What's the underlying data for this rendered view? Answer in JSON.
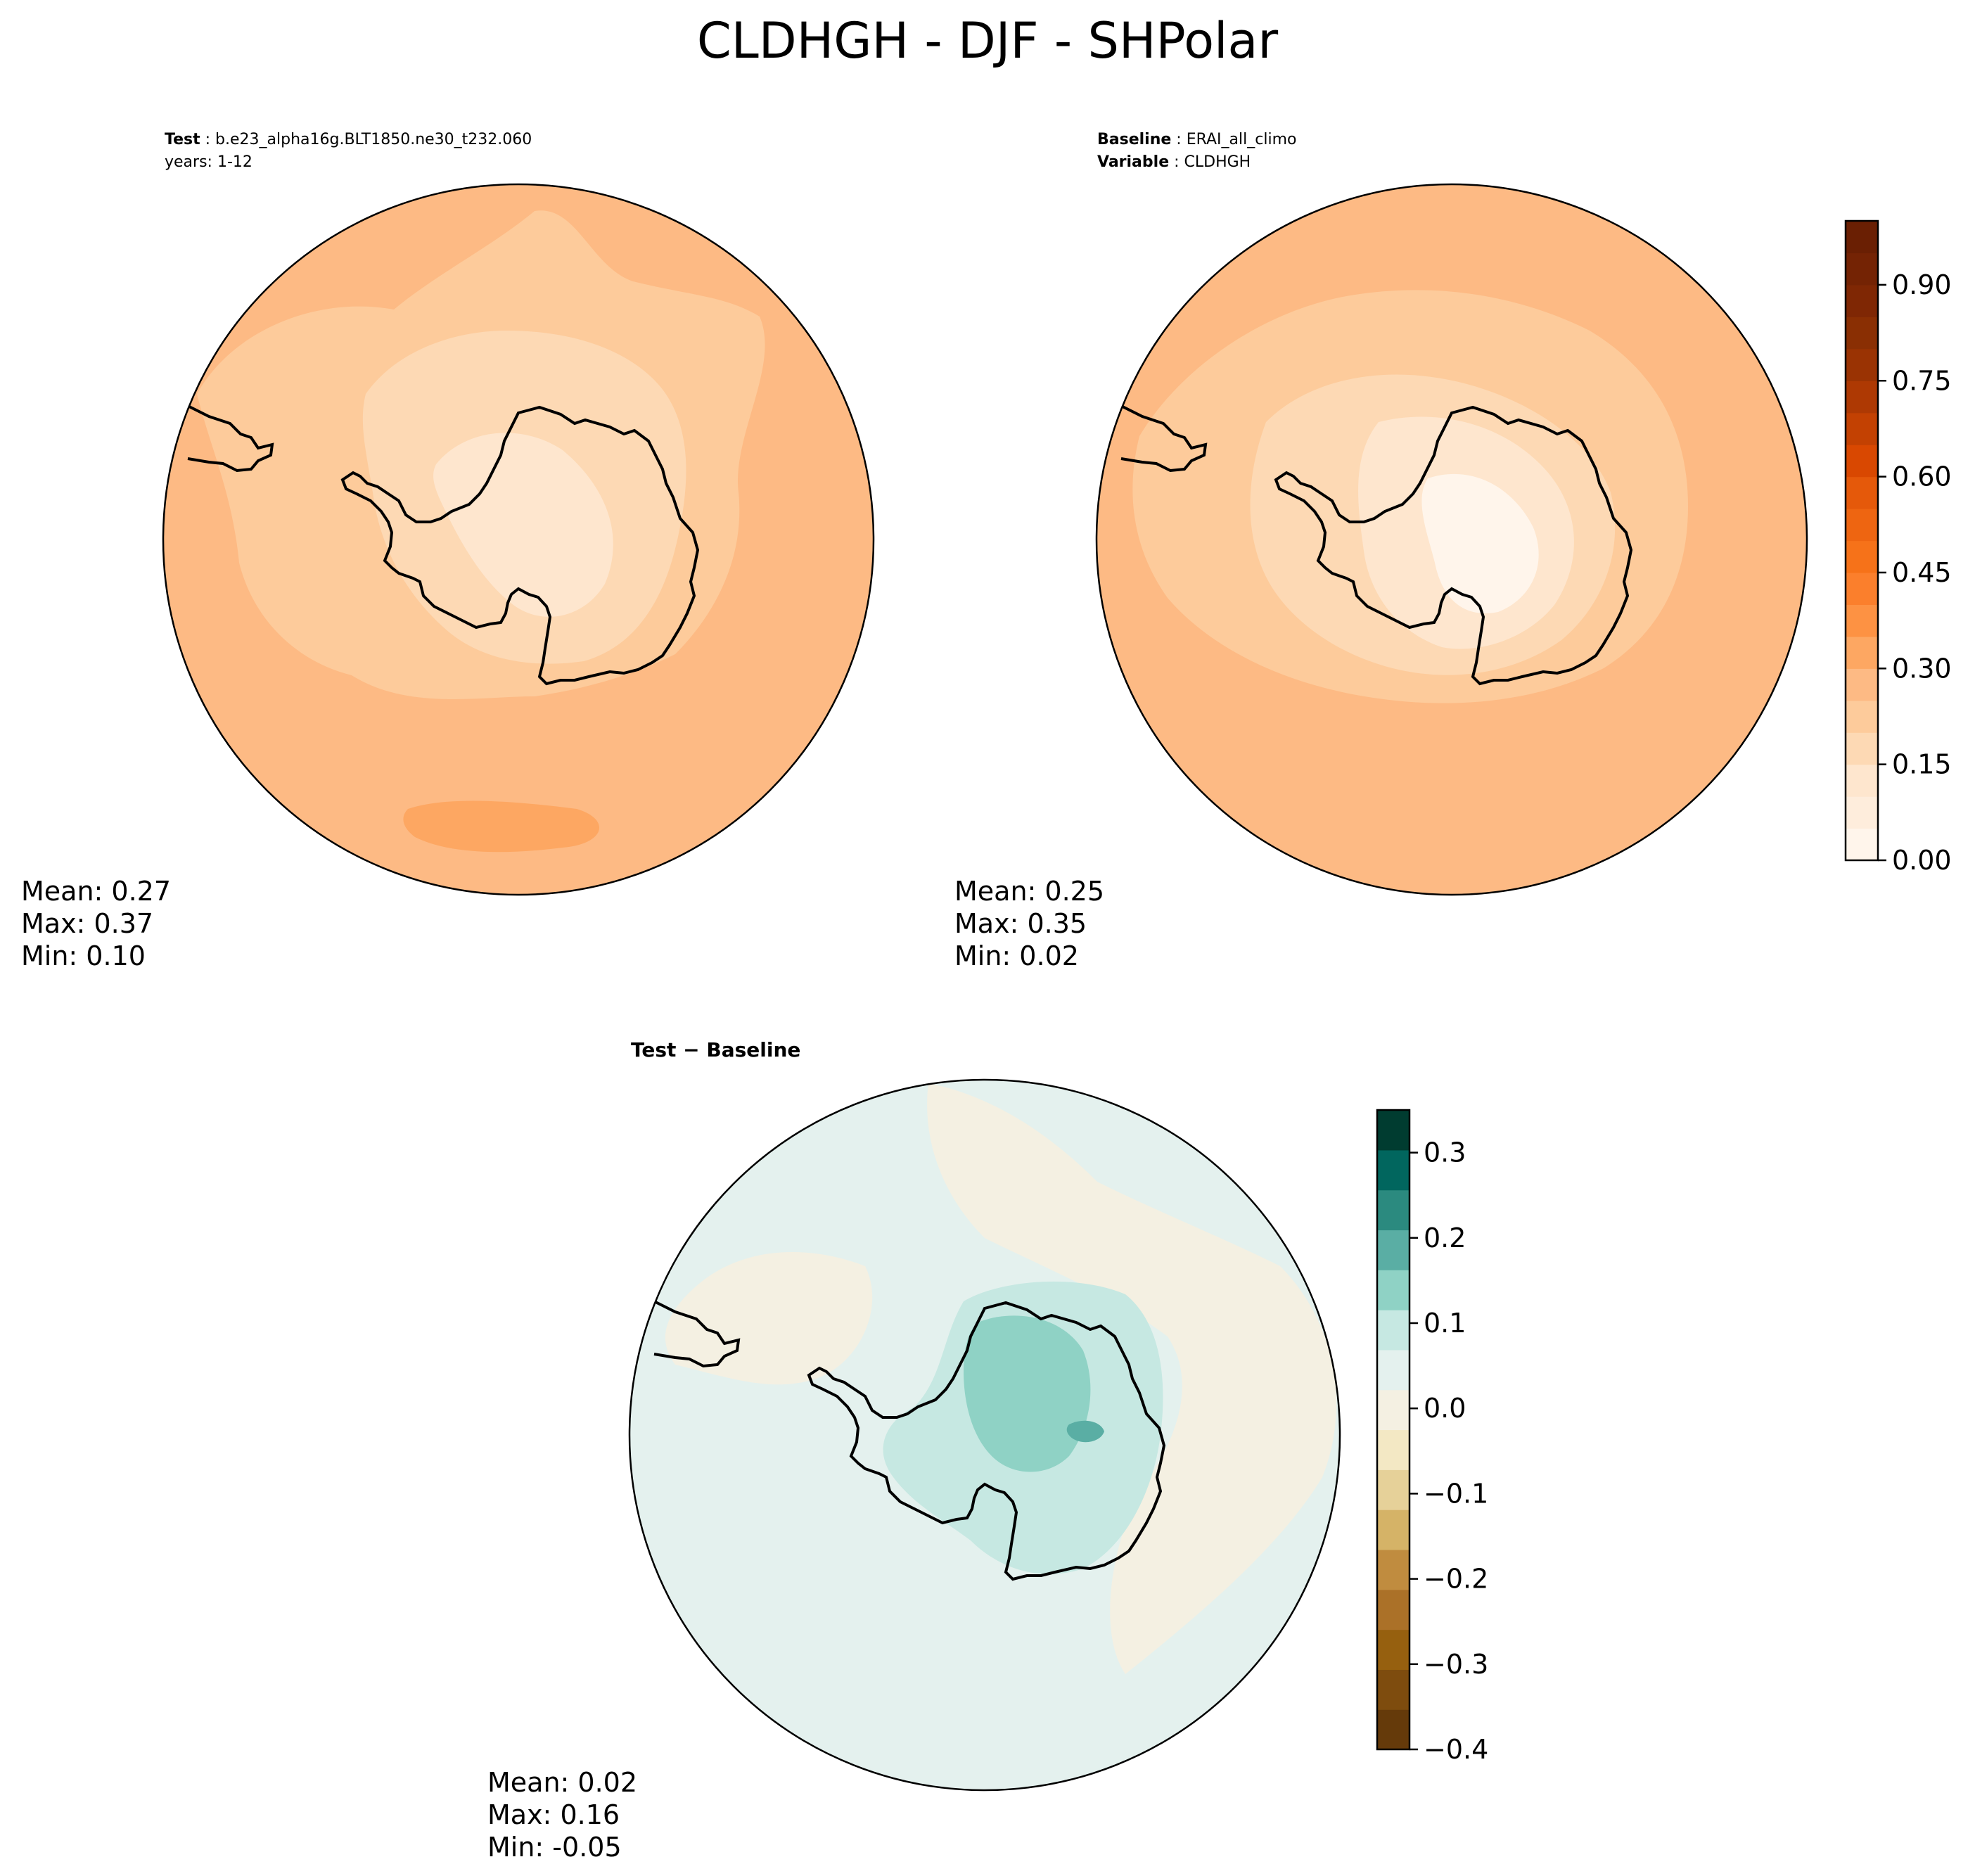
{
  "figure_title": "CLDHGH - DJF - SHPolar",
  "chart_data": [
    {
      "type": "polar-contour-map",
      "id": "test",
      "projection": "south-polar-stereographic",
      "header": [
        {
          "key": "Test",
          "value": "b.e23_alpha16g.BLT1850.ne30_t232.060"
        },
        {
          "key": "",
          "value": "years: 1-12"
        }
      ],
      "colormap": "Oranges",
      "stats": {
        "mean": "Mean:  0.27",
        "max": "Max:  0.37",
        "min": "Min:  0.10"
      }
    },
    {
      "type": "polar-contour-map",
      "id": "baseline",
      "projection": "south-polar-stereographic",
      "header": [
        {
          "key": "Baseline",
          "value": "ERAI_all_climo"
        },
        {
          "key": "Variable",
          "value": "CLDHGH"
        }
      ],
      "colormap": "Oranges",
      "stats": {
        "mean": "Mean:  0.25",
        "max": "Max:  0.35",
        "min": "Min:  0.02"
      },
      "colorbar": {
        "min": 0.0,
        "max": 1.0,
        "levels": 20,
        "ticks": [
          0.0,
          0.15,
          0.3,
          0.45,
          0.6,
          0.75,
          0.9
        ],
        "tick_labels": [
          "0.00",
          "0.15",
          "0.30",
          "0.45",
          "0.60",
          "0.75",
          "0.90"
        ],
        "colors": [
          "#fff5eb",
          "#feeddc",
          "#fee6ce",
          "#fdd9b4",
          "#fdcb9b",
          "#fdba84",
          "#fda762",
          "#fd9243",
          "#fb7f2c",
          "#f67219",
          "#ee6511",
          "#e5590a",
          "#d94801",
          "#c34102",
          "#ae3903",
          "#9a3303",
          "#8a2f03",
          "#7f2704",
          "#742304",
          "#6a1f03"
        ]
      }
    },
    {
      "type": "polar-contour-map",
      "id": "difference",
      "projection": "south-polar-stereographic",
      "header": [
        {
          "key": "Test − Baseline",
          "value": ""
        }
      ],
      "colormap": "BrBG",
      "stats": {
        "mean": "Mean:  0.02",
        "max": "Max:  0.16",
        "min": "Min: -0.05"
      },
      "colorbar": {
        "min": -0.4,
        "max": 0.35,
        "levels": 15,
        "ticks": [
          -0.4,
          -0.3,
          -0.2,
          -0.1,
          0.0,
          0.1,
          0.2,
          0.3
        ],
        "tick_labels": [
          "−0.4",
          "−0.3",
          "−0.2",
          "−0.1",
          "0.0",
          "0.1",
          "0.2",
          "0.3"
        ],
        "colors": [
          "#653a0a",
          "#7e4c0e",
          "#96600f",
          "#ab7128",
          "#c08c3f",
          "#d5b367",
          "#e6d199",
          "#f3e8c4",
          "#f4f0e2",
          "#e4f1ee",
          "#c6e8e2",
          "#8fd2c5",
          "#5aaea4",
          "#2b8a7f",
          "#01665e",
          "#003c30"
        ]
      }
    }
  ]
}
